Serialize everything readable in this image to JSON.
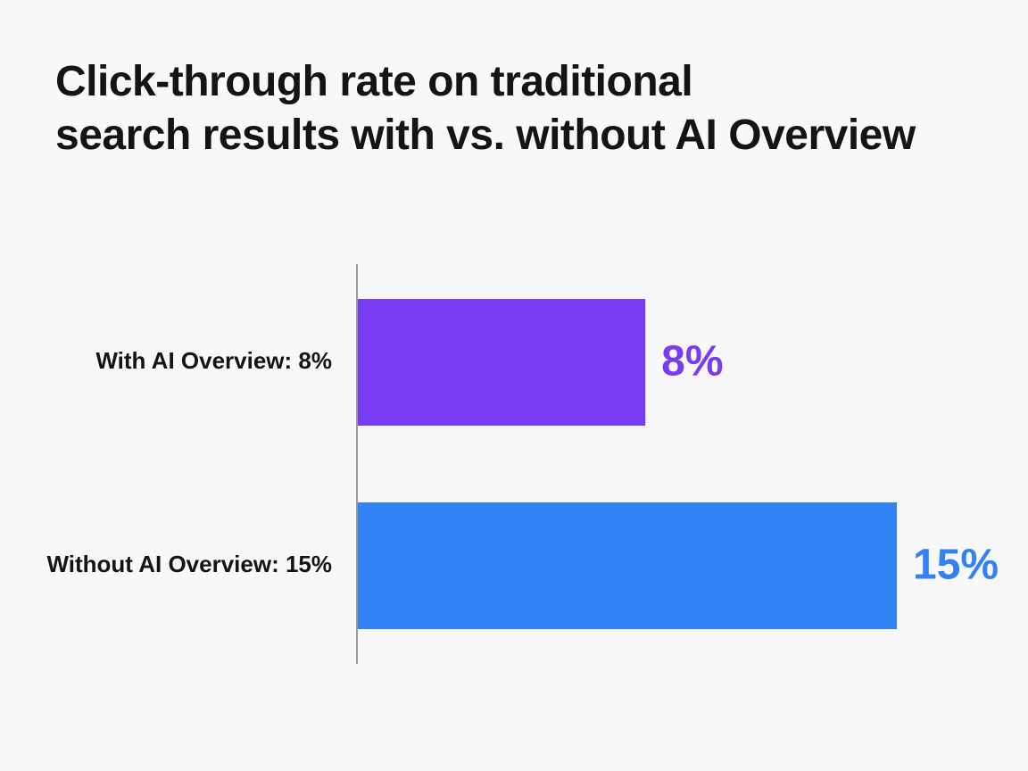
{
  "chart_data": {
    "type": "bar",
    "orientation": "horizontal",
    "title_lines": [
      "Click-through rate on traditional",
      "search results with vs. without AI Overview"
    ],
    "categories": [
      "With AI Overview: 8%",
      "Without AI Overview: 15%"
    ],
    "values": [
      8,
      15
    ],
    "data_labels": [
      "8%",
      "15%"
    ],
    "colors": [
      "#7a3cf0",
      "#3382f5"
    ],
    "unit": "%",
    "xlim": [
      0,
      15
    ],
    "grid": false,
    "legend": "none",
    "xlabel": "",
    "ylabel": ""
  }
}
